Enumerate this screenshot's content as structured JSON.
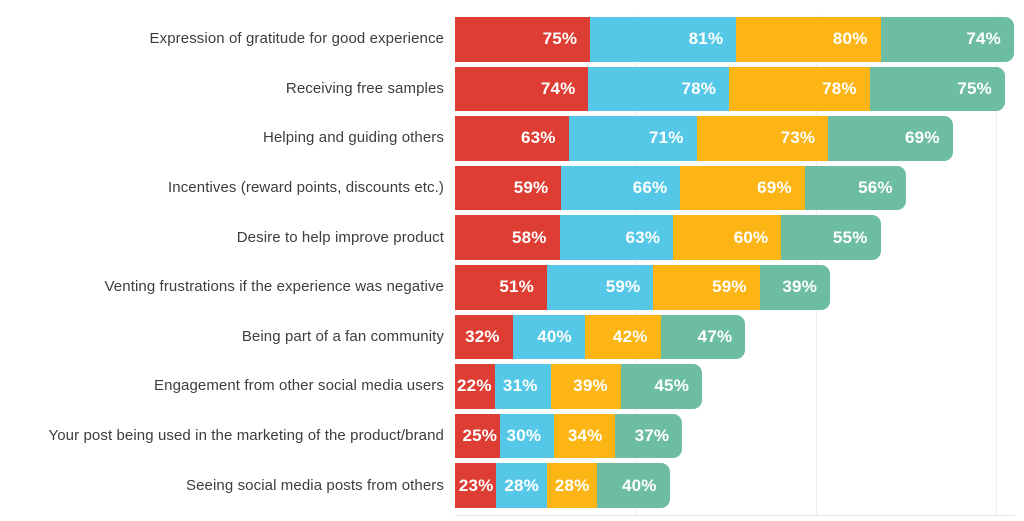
{
  "chart_data": {
    "type": "bar",
    "orientation": "horizontal",
    "stacked": true,
    "value_suffix": "%",
    "x_total_max": 310,
    "gridlines_at": [
      100,
      200,
      300
    ],
    "grid_color": "#efefef",
    "baseline_color": "#e8e8e8",
    "category_label_color": "#3d3d3d",
    "value_label_color": "#ffffff",
    "background": "#ffffff",
    "legend": "none visible",
    "categories": [
      "Expression of gratitude for good experience",
      "Receiving free samples",
      "Helping and guiding others",
      "Incentives (reward points, discounts etc.)",
      "Desire to help improve product",
      "Venting frustrations if the experience was negative",
      "Being part of a fan community",
      "Engagement from other social media users",
      "Your post being used in the marketing of the product/brand",
      "Seeing social media posts from others"
    ],
    "series": [
      {
        "name": "red",
        "color": "#DD3D33",
        "values": [
          75,
          74,
          63,
          59,
          58,
          51,
          32,
          22,
          25,
          23
        ]
      },
      {
        "name": "cyan",
        "color": "#55C8E8",
        "values": [
          81,
          78,
          71,
          66,
          63,
          59,
          40,
          31,
          30,
          28
        ]
      },
      {
        "name": "yellow",
        "color": "#FDB515",
        "values": [
          80,
          78,
          73,
          69,
          60,
          59,
          42,
          39,
          34,
          28
        ]
      },
      {
        "name": "teal",
        "color": "#6DBCA4",
        "values": [
          74,
          75,
          69,
          56,
          55,
          39,
          47,
          45,
          37,
          40
        ]
      }
    ]
  }
}
